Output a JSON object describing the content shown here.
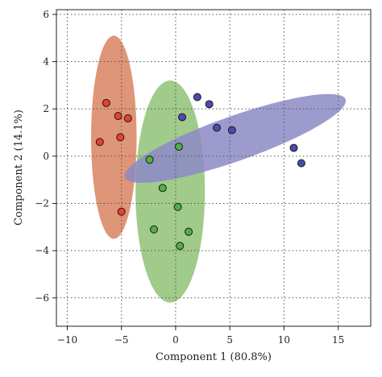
{
  "chart_data": {
    "type": "scatter",
    "title": "",
    "xlabel": "Component 1 (80.8%)",
    "ylabel": "Component 2 (14.1%)",
    "xlim": [
      -11,
      18
    ],
    "ylim": [
      -7.2,
      6.2
    ],
    "xticks": [
      -10,
      -5,
      0,
      5,
      10,
      15
    ],
    "yticks": [
      -6,
      -4,
      -2,
      0,
      2,
      4,
      6
    ],
    "grid": true,
    "series": [
      {
        "color": "#e8402f",
        "ellipse_color": "#d9835f",
        "ellipse": {
          "cx": -5.7,
          "cy": 0.8,
          "rx_data": 2.1,
          "ry_data": 4.3,
          "angle_deg": 0
        },
        "points": [
          {
            "x": -6.4,
            "y": 2.25
          },
          {
            "x": -5.3,
            "y": 1.7
          },
          {
            "x": -4.4,
            "y": 1.6
          },
          {
            "x": -7.0,
            "y": 0.6
          },
          {
            "x": -5.1,
            "y": 0.8
          },
          {
            "x": -5.0,
            "y": -2.35
          }
        ]
      },
      {
        "color": "#52b043",
        "ellipse_color": "#8fc276",
        "ellipse": {
          "cx": -0.5,
          "cy": -1.5,
          "rx_data": 3.2,
          "ry_data": 4.7,
          "angle_deg": 0
        },
        "points": [
          {
            "x": 0.3,
            "y": 0.4
          },
          {
            "x": -2.4,
            "y": -0.15
          },
          {
            "x": -1.2,
            "y": -1.35
          },
          {
            "x": 0.2,
            "y": -2.15
          },
          {
            "x": -2.0,
            "y": -3.1
          },
          {
            "x": 1.2,
            "y": -3.2
          },
          {
            "x": 0.4,
            "y": -3.8
          }
        ]
      },
      {
        "color": "#4b4bb0",
        "ellipse_color": "#8c8ac6",
        "ellipse": {
          "cx": 5.5,
          "cy": 0.75,
          "rx_data": 10.8,
          "ry_data": 0.95,
          "angle_deg": -19.5
        },
        "points": [
          {
            "x": 2.0,
            "y": 2.5
          },
          {
            "x": 3.1,
            "y": 2.2
          },
          {
            "x": 0.6,
            "y": 1.65
          },
          {
            "x": 3.8,
            "y": 1.2
          },
          {
            "x": 5.2,
            "y": 1.1
          },
          {
            "x": 10.9,
            "y": 0.35
          },
          {
            "x": 11.6,
            "y": -0.3
          }
        ]
      }
    ]
  }
}
